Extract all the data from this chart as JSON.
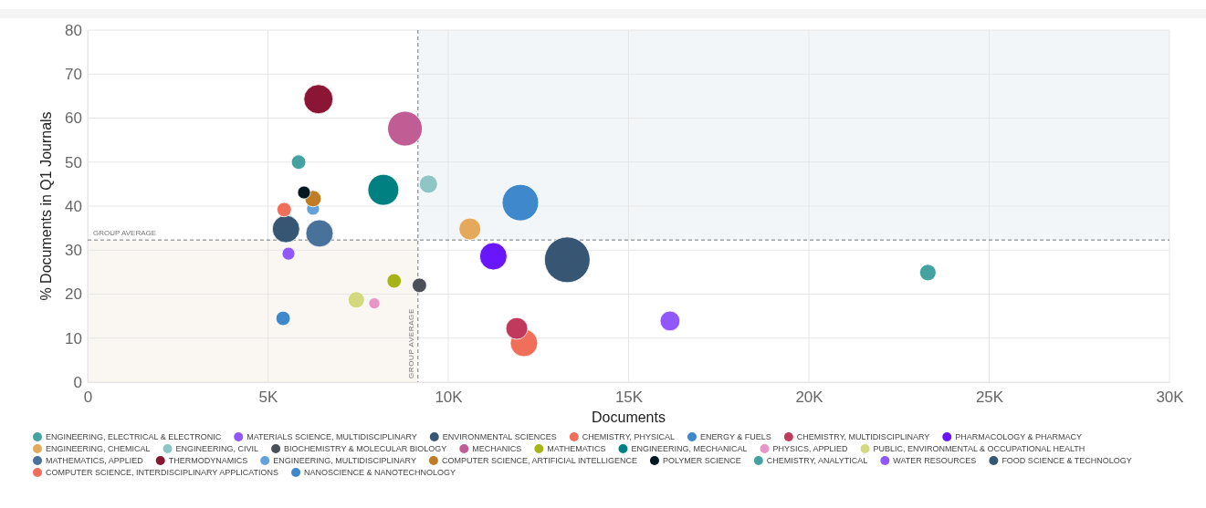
{
  "chart_data": {
    "type": "bubble",
    "xlabel": "Documents",
    "ylabel": "% Documents in Q1 Journals",
    "xlim": [
      0,
      30000
    ],
    "ylim": [
      0,
      80
    ],
    "xticks": [
      0,
      {
        "value": 5000,
        "label": "5K"
      },
      {
        "value": 10000,
        "label": "10K"
      },
      {
        "value": 15000,
        "label": "15K"
      },
      {
        "value": 20000,
        "label": "20K"
      },
      {
        "value": 25000,
        "label": "25K"
      },
      {
        "value": 30000,
        "label": "30K"
      }
    ],
    "yticks": [
      0,
      10,
      20,
      30,
      40,
      50,
      60,
      70,
      80
    ],
    "grid": true,
    "legend": "bottom",
    "ref_lines": [
      {
        "axis": "x",
        "value": 9160,
        "label": "GROUP AVERAGE",
        "line_style": "dashed",
        "color": "#777777"
      },
      {
        "axis": "y",
        "value": 32.3,
        "label": "GROUP AVERAGE",
        "line_style": "dashed",
        "color": "#777777"
      }
    ],
    "bands": [
      {
        "axis": "x",
        "from": 9160,
        "to": 30000,
        "color": "#f2f6f9"
      },
      {
        "axis": "x",
        "from": 0,
        "to": 9160,
        "color": "#faf7f2"
      }
    ],
    "series": [
      {
        "name": "ENGINEERING, ELECTRICAL & ELECTRONIC",
        "color": "#44a3a0",
        "x": [
          23300
        ],
        "values": [
          24.9
        ],
        "sizes": [
          0.13
        ]
      },
      {
        "name": "MATERIALS SCIENCE, MULTIDISCIPLINARY",
        "color": "#9157fb",
        "x": [
          16150
        ],
        "values": [
          13.9
        ],
        "sizes": [
          0.19
        ]
      },
      {
        "name": "ENVIRONMENTAL SCIENCES",
        "color": "#365673",
        "x": [
          13300
        ],
        "values": [
          27.8
        ],
        "sizes": [
          1
        ]
      },
      {
        "name": "CHEMISTRY, PHYSICAL",
        "color": "#ef6f5a",
        "x": [
          12100
        ],
        "values": [
          8.9
        ],
        "sizes": [
          0.36
        ]
      },
      {
        "name": "ENERGY & FUELS",
        "color": "#3f88cc",
        "x": [
          12000
        ],
        "values": [
          40.8
        ],
        "sizes": [
          0.64
        ]
      },
      {
        "name": "CHEMISTRY, MULTIDISCIPLINARY",
        "color": "#c2395e",
        "x": [
          11900
        ],
        "values": [
          12.2
        ],
        "sizes": [
          0.23
        ]
      },
      {
        "name": "PHARMACOLOGY & PHARMACY",
        "color": "#6a16fc",
        "x": [
          11250
        ],
        "values": [
          28.6
        ],
        "sizes": [
          0.36
        ]
      },
      {
        "name": "ENGINEERING, CHEMICAL",
        "color": "#e4a95b",
        "x": [
          10600
        ],
        "values": [
          34.8
        ],
        "sizes": [
          0.23
        ]
      },
      {
        "name": "ENGINEERING, CIVIL",
        "color": "#8dc6c5",
        "x": [
          9450
        ],
        "values": [
          45
        ],
        "sizes": [
          0.16
        ]
      },
      {
        "name": "BIOCHEMISTRY & MOLECULAR BIOLOGY",
        "color": "#4b4f58",
        "x": [
          9200
        ],
        "values": [
          22
        ],
        "sizes": [
          0.1
        ]
      },
      {
        "name": "MECHANICS",
        "color": "#c05d95",
        "x": [
          8800
        ],
        "values": [
          57.6
        ],
        "sizes": [
          0.58
        ]
      },
      {
        "name": "MATHEMATICS",
        "color": "#a7b418",
        "x": [
          8500
        ],
        "values": [
          23
        ],
        "sizes": [
          0.1
        ]
      },
      {
        "name": "ENGINEERING, MECHANICAL",
        "color": "#008080",
        "x": [
          8200
        ],
        "values": [
          43.7
        ],
        "sizes": [
          0.46
        ]
      },
      {
        "name": "PHYSICS, APPLIED",
        "color": "#e896c5",
        "x": [
          7950
        ],
        "values": [
          17.9
        ],
        "sizes": [
          0.06
        ]
      },
      {
        "name": "PUBLIC, ENVIRONMENTAL & OCCUPATIONAL HEALTH",
        "color": "#d3d97c",
        "x": [
          7450
        ],
        "values": [
          18.7
        ],
        "sizes": [
          0.13
        ]
      },
      {
        "name": "MATHEMATICS, APPLIED",
        "color": "#48729a",
        "x": [
          6430
        ],
        "values": [
          33.8
        ],
        "sizes": [
          0.36
        ]
      },
      {
        "name": "THERMODYNAMICS",
        "color": "#8b1535",
        "x": [
          6400
        ],
        "values": [
          64.3
        ],
        "sizes": [
          0.41
        ]
      },
      {
        "name": "ENGINEERING, MULTIDISCIPLINARY",
        "color": "#64a0da",
        "x": [
          6250
        ],
        "values": [
          39.4
        ],
        "sizes": [
          0.08
        ]
      },
      {
        "name": "COMPUTER SCIENCE, ARTIFICIAL INTELLIGENCE",
        "color": "#c07d26",
        "x": [
          6250
        ],
        "values": [
          41.7
        ],
        "sizes": [
          0.13
        ]
      },
      {
        "name": "POLYMER SCIENCE",
        "color": "#03181f",
        "x": [
          6000
        ],
        "values": [
          43.1
        ],
        "sizes": [
          0.08
        ]
      },
      {
        "name": "CHEMISTRY, ANALYTICAL",
        "color": "#44a3a0",
        "x": [
          5850
        ],
        "values": [
          50
        ],
        "sizes": [
          0.1
        ]
      },
      {
        "name": "WATER RESOURCES",
        "color": "#9157fb",
        "x": [
          5570
        ],
        "values": [
          29.2
        ],
        "sizes": [
          0.08
        ]
      },
      {
        "name": "FOOD SCIENCE & TECHNOLOGY",
        "color": "#365673",
        "x": [
          5500
        ],
        "values": [
          34.8
        ],
        "sizes": [
          0.36
        ]
      },
      {
        "name": "COMPUTER SCIENCE, INTERDISCIPLINARY APPLICATIONS",
        "color": "#ef6f5a",
        "x": [
          5450
        ],
        "values": [
          39.2
        ],
        "sizes": [
          0.1
        ]
      },
      {
        "name": "NANOSCIENCE & NANOTECHNOLOGY",
        "color": "#3f88cc",
        "x": [
          5420
        ],
        "values": [
          14.5
        ],
        "sizes": [
          0.1
        ]
      }
    ]
  }
}
